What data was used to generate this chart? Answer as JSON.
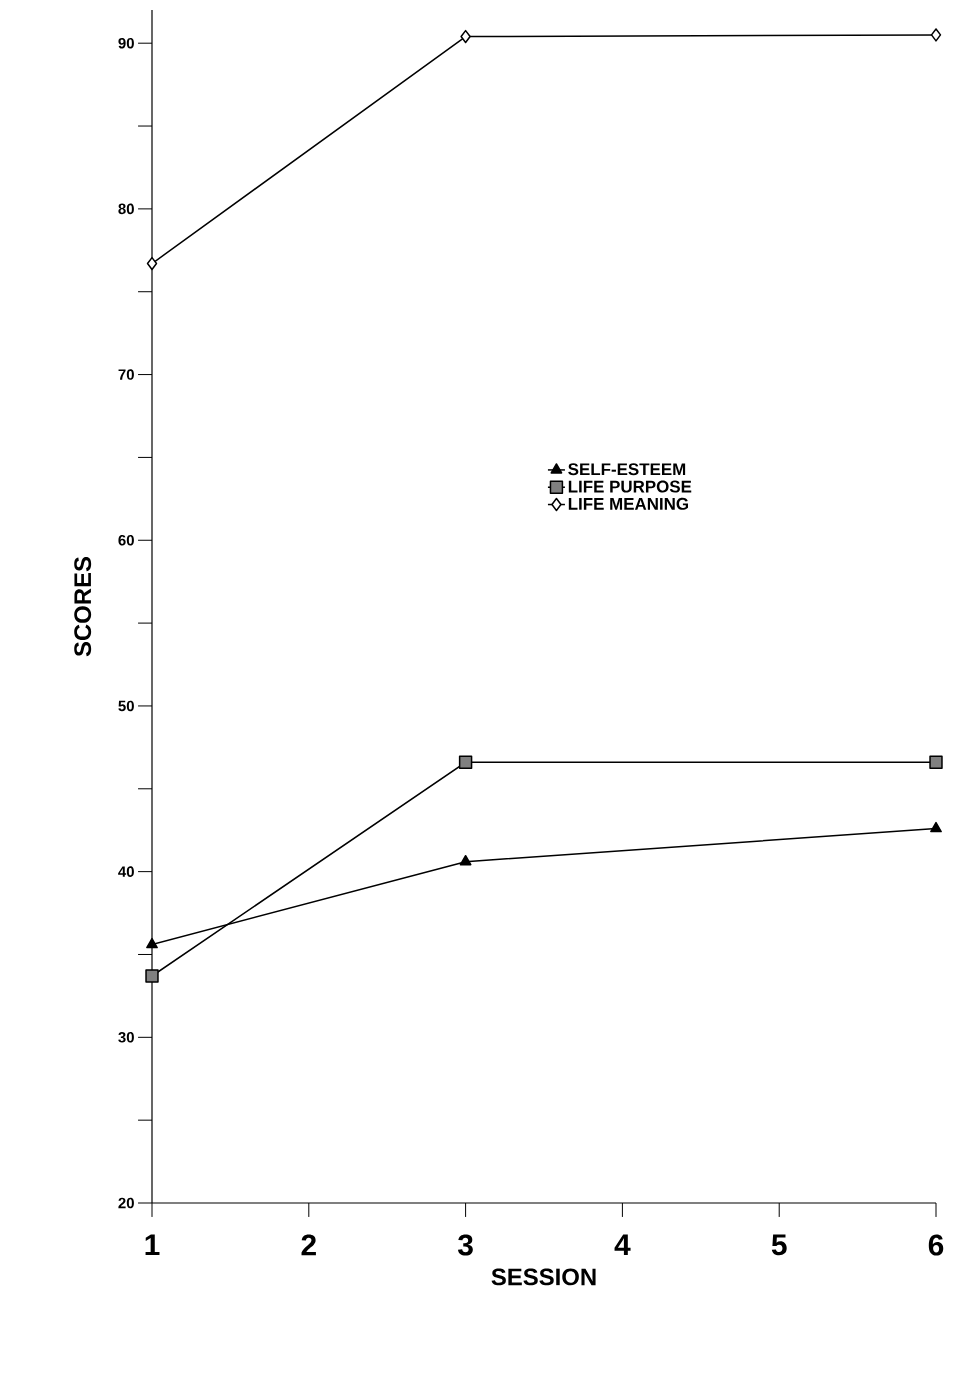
{
  "chart_data": {
    "type": "line",
    "xlabel": "SESSION",
    "ylabel": "SCORES",
    "x": [
      1,
      3,
      6
    ],
    "series": [
      {
        "name": "SELF-ESTEEM",
        "color": "#000000",
        "marker": "triangle",
        "values": [
          35.6,
          40.6,
          42.6
        ]
      },
      {
        "name": "LIFE PURPOSE",
        "color": "#000000",
        "marker": "square",
        "values": [
          33.7,
          46.6,
          46.6
        ]
      },
      {
        "name": "LIFE MEANING",
        "color": "#000000",
        "marker": "diamond",
        "values": [
          76.7,
          90.4,
          90.5
        ]
      }
    ],
    "xlim": [
      1,
      6
    ],
    "xticks": [
      1,
      2,
      3,
      4,
      5,
      6
    ],
    "ylim": [
      20,
      92
    ],
    "yticks": [
      20,
      {
        "value": 25,
        "label": null
      },
      30,
      {
        "value": 35,
        "label": null
      },
      40,
      {
        "value": 45,
        "label": null
      },
      50,
      {
        "value": 55,
        "label": null
      },
      60,
      {
        "value": 65,
        "label": null
      },
      70,
      {
        "value": 75,
        "label": null
      },
      80,
      {
        "value": 85,
        "label": null
      },
      90
    ],
    "grid": false,
    "legend": "right",
    "line_style": "solid"
  }
}
